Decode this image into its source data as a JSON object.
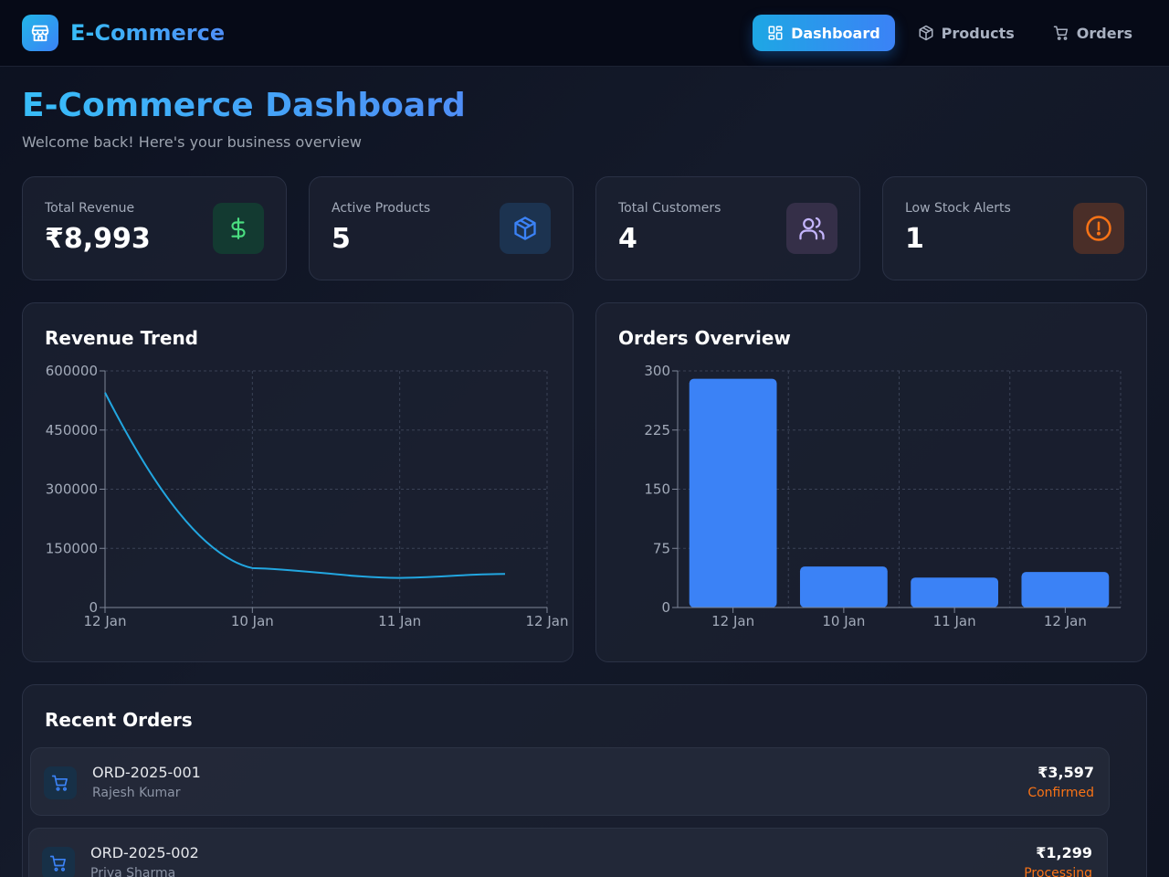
{
  "app": {
    "brand": "E-Commerce",
    "brand_icon": "store-icon"
  },
  "nav": {
    "items": [
      {
        "label": "Dashboard",
        "icon": "dashboard-icon",
        "active": true
      },
      {
        "label": "Products",
        "icon": "package-icon",
        "active": false
      },
      {
        "label": "Orders",
        "icon": "cart-icon",
        "active": false
      }
    ]
  },
  "page": {
    "title": "E-Commerce Dashboard",
    "subtitle": "Welcome back! Here's your business overview"
  },
  "stats": [
    {
      "label": "Total Revenue",
      "value": "₹8,993",
      "icon": "dollar-icon",
      "color": "#4ade80"
    },
    {
      "label": "Active Products",
      "value": "5",
      "icon": "package-icon",
      "color": "#3b82f6"
    },
    {
      "label": "Total Customers",
      "value": "4",
      "icon": "users-icon",
      "color": "#c4b5fd"
    },
    {
      "label": "Low Stock Alerts",
      "value": "1",
      "icon": "alert-icon",
      "color": "#f97316"
    }
  ],
  "charts": {
    "revenue_title": "Revenue Trend",
    "orders_title": "Orders Overview"
  },
  "chart_data": [
    {
      "type": "line",
      "title": "Revenue Trend",
      "x_ticks": [
        "12 Jan",
        "10 Jan",
        "11 Jan",
        "12 Jan"
      ],
      "y_ticks": [
        "0",
        "150000",
        "300000",
        "450000",
        "600000"
      ],
      "ylim": [
        0,
        600000
      ],
      "series": [
        {
          "values": [
            545000,
            100000,
            75000,
            85000
          ]
        }
      ],
      "grid": true,
      "color": "#22a6e0"
    },
    {
      "type": "bar",
      "title": "Orders Overview",
      "categories": [
        "12 Jan",
        "10 Jan",
        "11 Jan",
        "12 Jan"
      ],
      "values": [
        290,
        52,
        38,
        45
      ],
      "y_ticks": [
        "0",
        "75",
        "150",
        "225",
        "300"
      ],
      "ylim": [
        0,
        300
      ],
      "grid": true,
      "color": "#3b82f6"
    }
  ],
  "orders": {
    "title": "Recent Orders",
    "items": [
      {
        "id": "ORD-2025-001",
        "customer": "Rajesh Kumar",
        "amount": "₹3,597",
        "status": "Confirmed"
      },
      {
        "id": "ORD-2025-002",
        "customer": "Priya Sharma",
        "amount": "₹1,299",
        "status": "Processing"
      }
    ]
  }
}
